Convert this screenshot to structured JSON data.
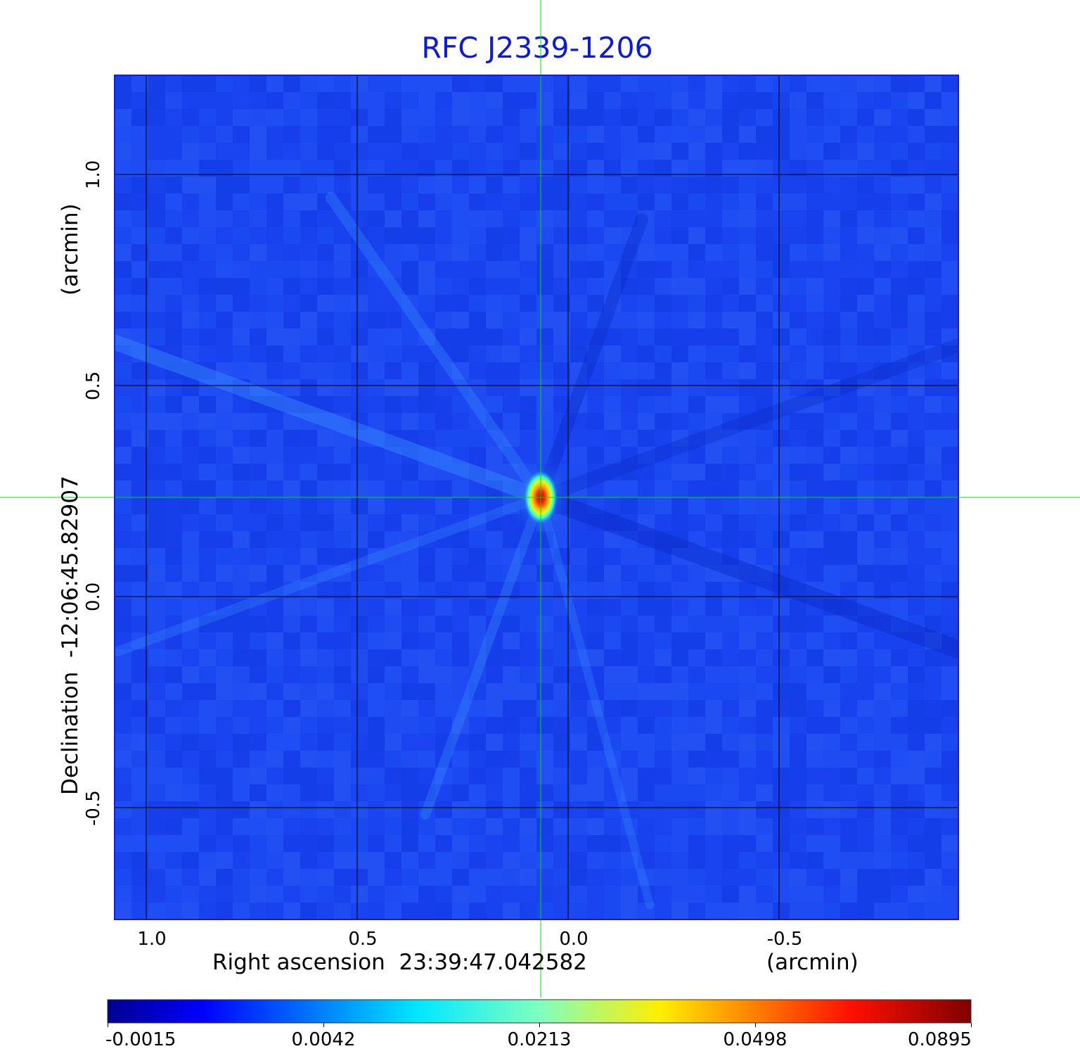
{
  "chart_data": {
    "type": "heatmap",
    "title": "RFC J2339-1206",
    "xlabel": "Right ascension  23:39:47.042582",
    "xunit": "(arcmin)",
    "ylabel": "Declination  -12:06:45.82907",
    "yunit": "(arcmin)",
    "x_ticks": [
      "1.0",
      "0.5",
      "0.0",
      "-0.5"
    ],
    "x_tick_values": [
      1.0,
      0.5,
      0.0,
      -0.5
    ],
    "y_ticks": [
      "1.0",
      "0.5",
      "0.0",
      "-0.5"
    ],
    "y_tick_values": [
      1.0,
      0.5,
      0.0,
      -0.5
    ],
    "xlim": [
      1.075,
      -0.925
    ],
    "ylim": [
      -0.765,
      1.235
    ],
    "grid": true,
    "crosshair": {
      "x": 0.065,
      "y": 0.235,
      "color": "#00e000"
    },
    "source_peak": {
      "x": 0.065,
      "y": 0.235,
      "value": 0.0895
    },
    "colorbar": {
      "colormap": "jet",
      "ticks": [
        "-0.0015",
        "0.0042",
        "0.0213",
        "0.0498",
        "0.0895"
      ],
      "tick_values": [
        -0.0015,
        0.0042,
        0.0213,
        0.0498,
        0.0895
      ]
    }
  },
  "colors": {
    "title": "#0a1ad8",
    "grid": "#000000",
    "crosshair": "#00e000",
    "background_level": "#1a46f0"
  }
}
